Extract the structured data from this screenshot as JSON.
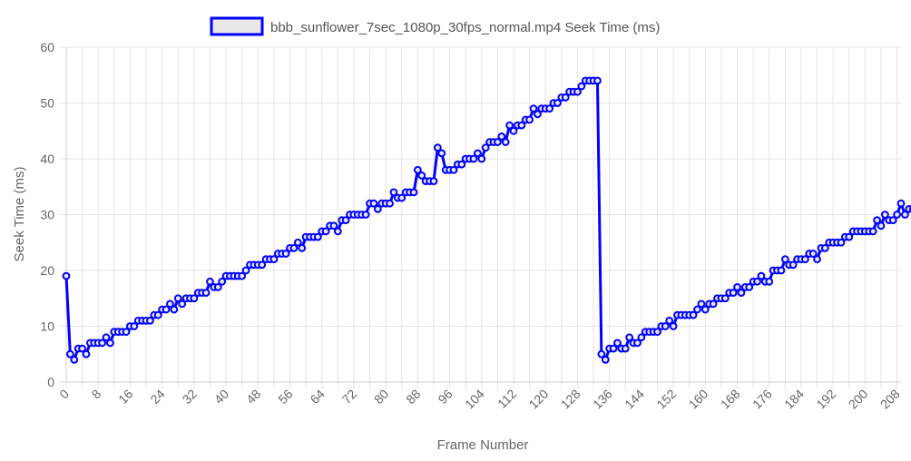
{
  "chart_data": {
    "type": "line",
    "title": "",
    "legend_position": "top-center",
    "grid": true,
    "xlabel": "Frame Number",
    "ylabel": "Seek Time (ms)",
    "ylim": [
      0,
      60
    ],
    "y_ticks": [
      0,
      10,
      20,
      30,
      40,
      50,
      60
    ],
    "xlim": [
      0,
      209
    ],
    "x_ticks": [
      0,
      8,
      16,
      24,
      32,
      40,
      48,
      56,
      64,
      72,
      80,
      88,
      96,
      104,
      112,
      120,
      128,
      136,
      144,
      152,
      160,
      168,
      176,
      184,
      192,
      200,
      208
    ],
    "series": [
      {
        "name": "bbb_sunflower_7sec_1080p_30fps_normal.mp4 Seek Time (ms)",
        "color": "#0000ff",
        "fill": "#e8e8e8",
        "values": [
          19,
          5,
          4,
          6,
          6,
          5,
          7,
          7,
          7,
          7,
          8,
          7,
          9,
          9,
          9,
          9,
          10,
          10,
          11,
          11,
          11,
          11,
          12,
          12,
          13,
          13,
          14,
          13,
          15,
          14,
          15,
          15,
          15,
          16,
          16,
          16,
          18,
          17,
          17,
          18,
          19,
          19,
          19,
          19,
          19,
          20,
          21,
          21,
          21,
          21,
          22,
          22,
          22,
          23,
          23,
          23,
          24,
          24,
          25,
          24,
          26,
          26,
          26,
          26,
          27,
          27,
          28,
          28,
          27,
          29,
          29,
          30,
          30,
          30,
          30,
          30,
          32,
          32,
          31,
          32,
          32,
          32,
          34,
          33,
          33,
          34,
          34,
          34,
          38,
          37,
          36,
          36,
          36,
          42,
          41,
          38,
          38,
          38,
          39,
          39,
          40,
          40,
          40,
          41,
          40,
          42,
          43,
          43,
          43,
          44,
          43,
          46,
          45,
          46,
          46,
          47,
          47,
          49,
          48,
          49,
          49,
          49,
          50,
          50,
          51,
          51,
          52,
          52,
          52,
          53,
          54,
          54,
          54,
          54,
          5,
          4,
          6,
          6,
          7,
          6,
          6,
          8,
          7,
          7,
          8,
          9,
          9,
          9,
          9,
          10,
          10,
          11,
          10,
          12,
          12,
          12,
          12,
          12,
          13,
          14,
          13,
          14,
          14,
          15,
          15,
          15,
          16,
          16,
          17,
          16,
          17,
          17,
          18,
          18,
          19,
          18,
          18,
          20,
          20,
          20,
          22,
          21,
          21,
          22,
          22,
          22,
          23,
          23,
          22,
          24,
          24,
          25,
          25,
          25,
          25,
          26,
          26,
          27,
          27,
          27,
          27,
          27,
          27,
          29,
          28,
          30,
          29,
          29,
          30,
          32,
          30,
          31,
          31,
          31,
          31
        ]
      }
    ]
  }
}
